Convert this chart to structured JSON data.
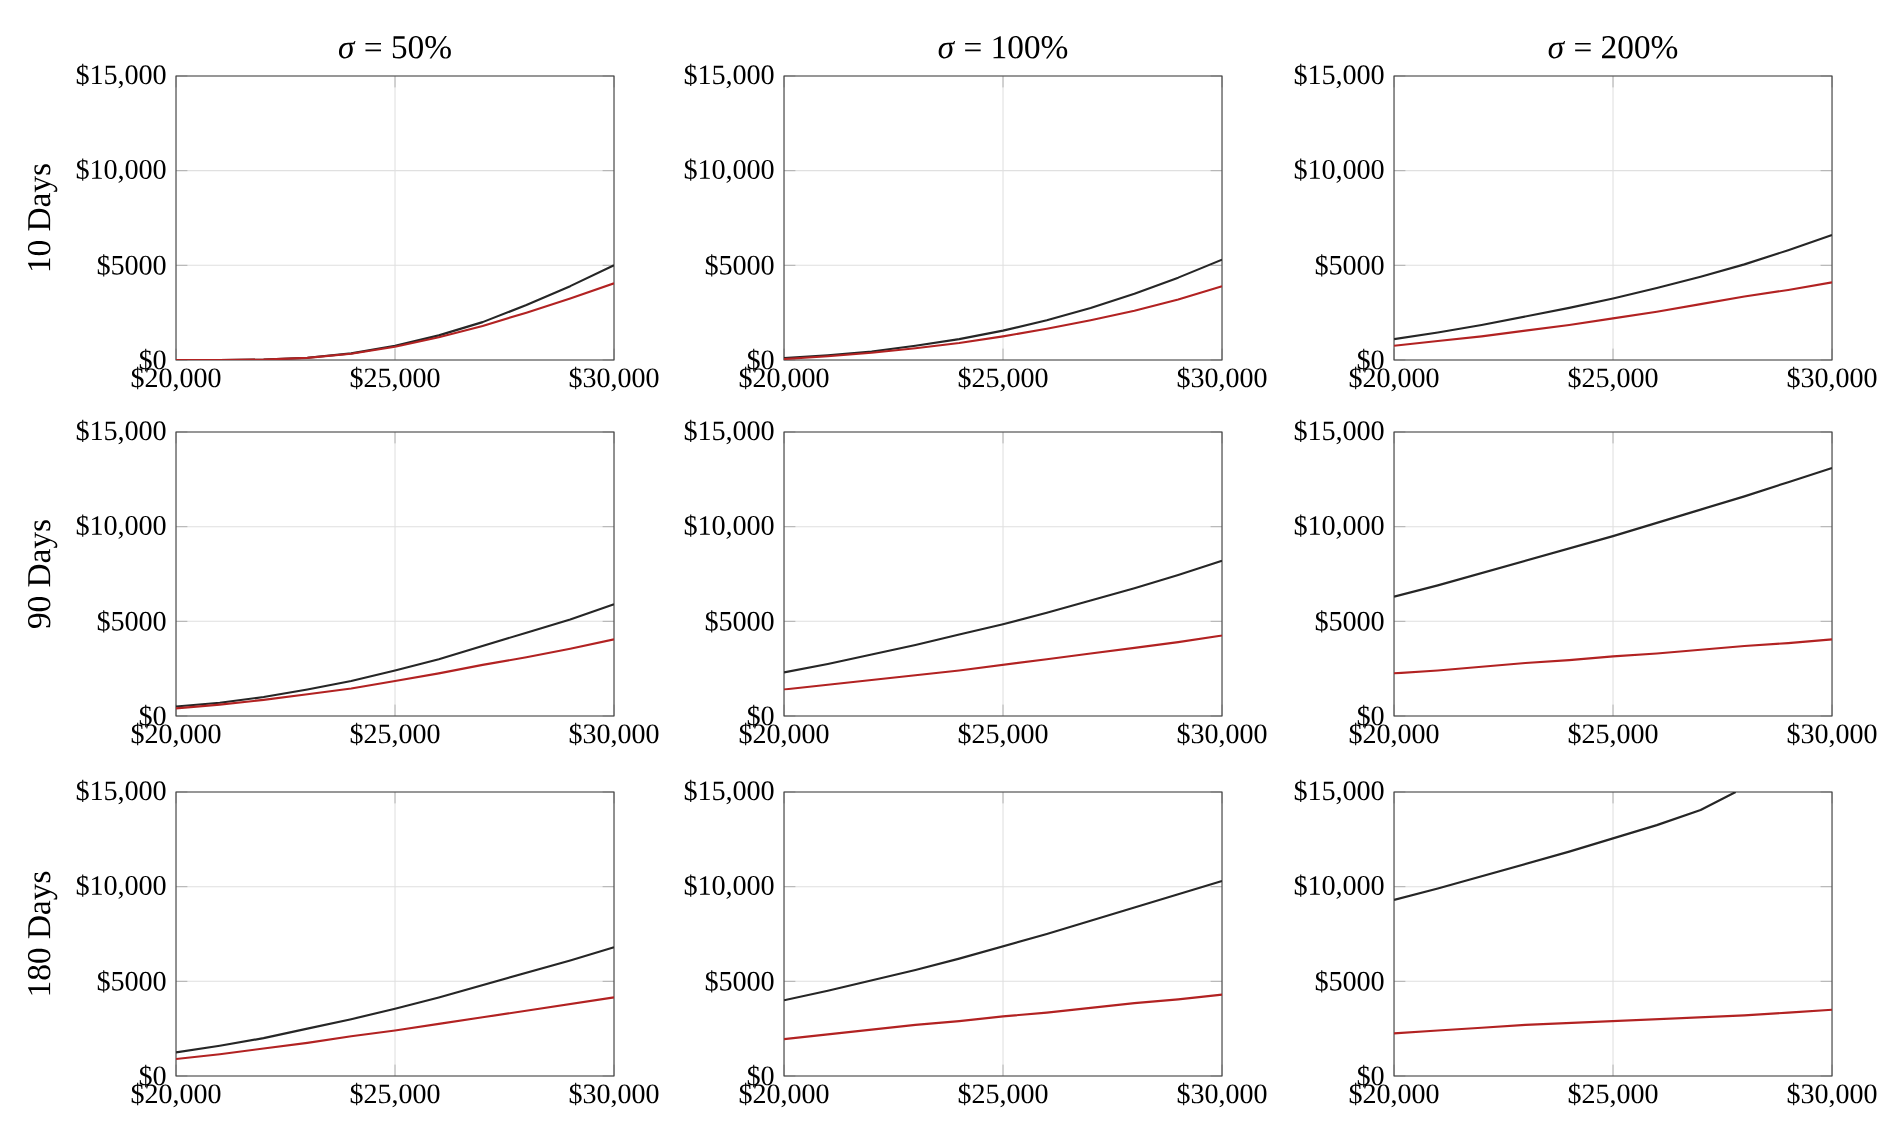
{
  "chart_data": [
    {
      "type": "line",
      "title": "*σ* = 50%",
      "ylabel": "10 Days",
      "x": [
        20000,
        21000,
        22000,
        23000,
        24000,
        25000,
        26000,
        27000,
        28000,
        29000,
        30000
      ],
      "xlim": [
        20000,
        30000
      ],
      "ylim": [
        0,
        15000
      ],
      "xticks": [
        {
          "value": 20000,
          "label": "$20,000"
        },
        {
          "value": 25000,
          "label": "$25,000"
        },
        {
          "value": 30000,
          "label": "$30,000"
        }
      ],
      "yticks": [
        {
          "value": 0,
          "label": "$0"
        },
        {
          "value": 5000,
          "label": "$5000"
        },
        {
          "value": 10000,
          "label": "$10,000"
        },
        {
          "value": 15000,
          "label": "$15,000"
        }
      ],
      "grid": true,
      "series": [
        {
          "color": "#262626",
          "values": [
            0,
            0,
            20,
            120,
            350,
            750,
            1300,
            2000,
            2900,
            3900,
            5000
          ]
        },
        {
          "color": "#b22222",
          "values": [
            0,
            0,
            20,
            110,
            330,
            700,
            1200,
            1800,
            2500,
            3250,
            4050
          ]
        }
      ]
    },
    {
      "type": "line",
      "title": "*σ* = 100%",
      "x": [
        20000,
        21000,
        22000,
        23000,
        24000,
        25000,
        26000,
        27000,
        28000,
        29000,
        30000
      ],
      "xlim": [
        20000,
        30000
      ],
      "ylim": [
        0,
        15000
      ],
      "xticks": [
        {
          "value": 20000,
          "label": "$20,000"
        },
        {
          "value": 25000,
          "label": "$25,000"
        },
        {
          "value": 30000,
          "label": "$30,000"
        }
      ],
      "yticks": [
        {
          "value": 0,
          "label": "$0"
        },
        {
          "value": 5000,
          "label": "$5000"
        },
        {
          "value": 10000,
          "label": "$10,000"
        },
        {
          "value": 15000,
          "label": "$15,000"
        }
      ],
      "grid": true,
      "series": [
        {
          "color": "#262626",
          "values": [
            100,
            250,
            450,
            750,
            1100,
            1550,
            2100,
            2750,
            3500,
            4350,
            5300
          ]
        },
        {
          "color": "#b22222",
          "values": [
            50,
            200,
            380,
            620,
            900,
            1250,
            1650,
            2100,
            2600,
            3200,
            3900
          ]
        }
      ]
    },
    {
      "type": "line",
      "title": "*σ* = 200%",
      "x": [
        20000,
        21000,
        22000,
        23000,
        24000,
        25000,
        26000,
        27000,
        28000,
        29000,
        30000
      ],
      "xlim": [
        20000,
        30000
      ],
      "ylim": [
        0,
        15000
      ],
      "xticks": [
        {
          "value": 20000,
          "label": "$20,000"
        },
        {
          "value": 25000,
          "label": "$25,000"
        },
        {
          "value": 30000,
          "label": "$30,000"
        }
      ],
      "yticks": [
        {
          "value": 0,
          "label": "$0"
        },
        {
          "value": 5000,
          "label": "$5000"
        },
        {
          "value": 10000,
          "label": "$10,000"
        },
        {
          "value": 15000,
          "label": "$15,000"
        }
      ],
      "grid": true,
      "series": [
        {
          "color": "#262626",
          "values": [
            1100,
            1450,
            1850,
            2300,
            2750,
            3250,
            3800,
            4400,
            5050,
            5800,
            6600
          ]
        },
        {
          "color": "#b22222",
          "values": [
            750,
            1000,
            1250,
            1550,
            1850,
            2200,
            2550,
            2950,
            3350,
            3700,
            4100
          ]
        }
      ]
    },
    {
      "type": "line",
      "ylabel": "90 Days",
      "x": [
        20000,
        21000,
        22000,
        23000,
        24000,
        25000,
        26000,
        27000,
        28000,
        29000,
        30000
      ],
      "xlim": [
        20000,
        30000
      ],
      "ylim": [
        0,
        15000
      ],
      "xticks": [
        {
          "value": 20000,
          "label": "$20,000"
        },
        {
          "value": 25000,
          "label": "$25,000"
        },
        {
          "value": 30000,
          "label": "$30,000"
        }
      ],
      "yticks": [
        {
          "value": 0,
          "label": "$0"
        },
        {
          "value": 5000,
          "label": "$5000"
        },
        {
          "value": 10000,
          "label": "$10,000"
        },
        {
          "value": 15000,
          "label": "$15,000"
        }
      ],
      "grid": true,
      "series": [
        {
          "color": "#262626",
          "values": [
            500,
            700,
            1000,
            1400,
            1850,
            2400,
            3000,
            3700,
            4400,
            5100,
            5900
          ]
        },
        {
          "color": "#b22222",
          "values": [
            400,
            600,
            850,
            1150,
            1450,
            1850,
            2250,
            2700,
            3100,
            3550,
            4050
          ]
        }
      ]
    },
    {
      "type": "line",
      "x": [
        20000,
        21000,
        22000,
        23000,
        24000,
        25000,
        26000,
        27000,
        28000,
        29000,
        30000
      ],
      "xlim": [
        20000,
        30000
      ],
      "ylim": [
        0,
        15000
      ],
      "xticks": [
        {
          "value": 20000,
          "label": "$20,000"
        },
        {
          "value": 25000,
          "label": "$25,000"
        },
        {
          "value": 30000,
          "label": "$30,000"
        }
      ],
      "yticks": [
        {
          "value": 0,
          "label": "$0"
        },
        {
          "value": 5000,
          "label": "$5000"
        },
        {
          "value": 10000,
          "label": "$10,000"
        },
        {
          "value": 15000,
          "label": "$15,000"
        }
      ],
      "grid": true,
      "series": [
        {
          "color": "#262626",
          "values": [
            2300,
            2750,
            3250,
            3750,
            4300,
            4850,
            5450,
            6100,
            6750,
            7450,
            8200
          ]
        },
        {
          "color": "#b22222",
          "values": [
            1400,
            1650,
            1900,
            2150,
            2400,
            2700,
            3000,
            3300,
            3600,
            3900,
            4250
          ]
        }
      ]
    },
    {
      "type": "line",
      "x": [
        20000,
        21000,
        22000,
        23000,
        24000,
        25000,
        26000,
        27000,
        28000,
        29000,
        30000
      ],
      "xlim": [
        20000,
        30000
      ],
      "ylim": [
        0,
        15000
      ],
      "xticks": [
        {
          "value": 20000,
          "label": "$20,000"
        },
        {
          "value": 25000,
          "label": "$25,000"
        },
        {
          "value": 30000,
          "label": "$30,000"
        }
      ],
      "yticks": [
        {
          "value": 0,
          "label": "$0"
        },
        {
          "value": 5000,
          "label": "$5000"
        },
        {
          "value": 10000,
          "label": "$10,000"
        },
        {
          "value": 15000,
          "label": "$15,000"
        }
      ],
      "grid": true,
      "series": [
        {
          "color": "#262626",
          "values": [
            6300,
            6900,
            7550,
            8200,
            8850,
            9500,
            10200,
            10900,
            11600,
            12350,
            13100
          ]
        },
        {
          "color": "#b22222",
          "values": [
            2250,
            2400,
            2600,
            2800,
            2950,
            3150,
            3300,
            3500,
            3700,
            3850,
            4050
          ]
        }
      ]
    },
    {
      "type": "line",
      "ylabel": "180 Days",
      "x": [
        20000,
        21000,
        22000,
        23000,
        24000,
        25000,
        26000,
        27000,
        28000,
        29000,
        30000
      ],
      "xlim": [
        20000,
        30000
      ],
      "ylim": [
        0,
        15000
      ],
      "xticks": [
        {
          "value": 20000,
          "label": "$20,000"
        },
        {
          "value": 25000,
          "label": "$25,000"
        },
        {
          "value": 30000,
          "label": "$30,000"
        }
      ],
      "yticks": [
        {
          "value": 0,
          "label": "$0"
        },
        {
          "value": 5000,
          "label": "$5000"
        },
        {
          "value": 10000,
          "label": "$10,000"
        },
        {
          "value": 15000,
          "label": "$15,000"
        }
      ],
      "grid": true,
      "series": [
        {
          "color": "#262626",
          "values": [
            1250,
            1600,
            2000,
            2500,
            3000,
            3550,
            4150,
            4800,
            5450,
            6100,
            6800
          ]
        },
        {
          "color": "#b22222",
          "values": [
            900,
            1150,
            1450,
            1750,
            2100,
            2400,
            2750,
            3100,
            3450,
            3800,
            4150
          ]
        }
      ]
    },
    {
      "type": "line",
      "x": [
        20000,
        21000,
        22000,
        23000,
        24000,
        25000,
        26000,
        27000,
        28000,
        29000,
        30000
      ],
      "xlim": [
        20000,
        30000
      ],
      "ylim": [
        0,
        15000
      ],
      "xticks": [
        {
          "value": 20000,
          "label": "$20,000"
        },
        {
          "value": 25000,
          "label": "$25,000"
        },
        {
          "value": 30000,
          "label": "$30,000"
        }
      ],
      "yticks": [
        {
          "value": 0,
          "label": "$0"
        },
        {
          "value": 5000,
          "label": "$5000"
        },
        {
          "value": 10000,
          "label": "$10,000"
        },
        {
          "value": 15000,
          "label": "$15,000"
        }
      ],
      "grid": true,
      "series": [
        {
          "color": "#262626",
          "values": [
            4000,
            4500,
            5050,
            5600,
            6200,
            6850,
            7500,
            8200,
            8900,
            9600,
            10300
          ]
        },
        {
          "color": "#b22222",
          "values": [
            1950,
            2200,
            2450,
            2700,
            2900,
            3150,
            3350,
            3600,
            3850,
            4050,
            4300
          ]
        }
      ]
    },
    {
      "type": "line",
      "x": [
        20000,
        21000,
        22000,
        23000,
        24000,
        25000,
        26000,
        27000,
        28000,
        29000,
        30000
      ],
      "xlim": [
        20000,
        30000
      ],
      "ylim": [
        0,
        15000
      ],
      "xticks": [
        {
          "value": 20000,
          "label": "$20,000"
        },
        {
          "value": 25000,
          "label": "$25,000"
        },
        {
          "value": 30000,
          "label": "$30,000"
        }
      ],
      "yticks": [
        {
          "value": 0,
          "label": "$0"
        },
        {
          "value": 5000,
          "label": "$5000"
        },
        {
          "value": 10000,
          "label": "$10,000"
        },
        {
          "value": 15000,
          "label": "$15,000"
        }
      ],
      "grid": true,
      "series": [
        {
          "color": "#262626",
          "x": [
            20000,
            21000,
            22000,
            23000,
            24000,
            25000,
            26000,
            27000,
            27800
          ],
          "values": [
            9300,
            9900,
            10550,
            11200,
            11850,
            12550,
            13250,
            14050,
            15000
          ]
        },
        {
          "color": "#b22222",
          "values": [
            2250,
            2400,
            2550,
            2700,
            2800,
            2900,
            3000,
            3100,
            3200,
            3350,
            3500
          ]
        }
      ]
    }
  ]
}
